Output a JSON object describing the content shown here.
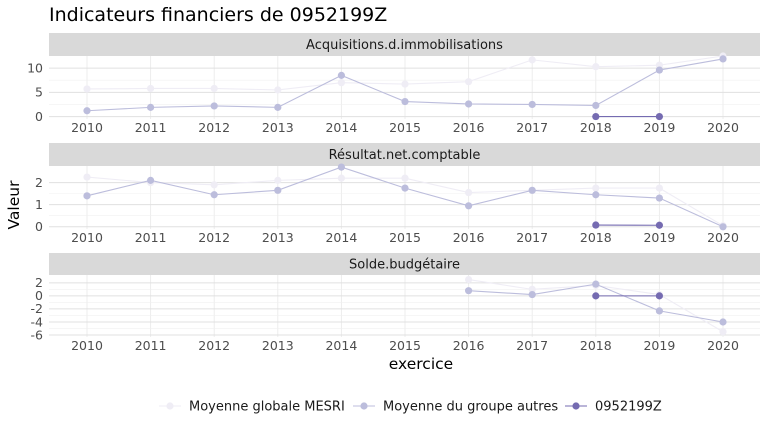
{
  "chart_data": {
    "type": "line",
    "title": "Indicateurs financiers de 0952199Z",
    "xlabel": "exercice",
    "ylabel": "Valeur",
    "x": [
      2010,
      2011,
      2012,
      2013,
      2014,
      2015,
      2016,
      2017,
      2018,
      2019,
      2020
    ],
    "legend": {
      "position": "bottom"
    },
    "series_styles": [
      {
        "name": "Moyenne globale MESRI",
        "color": "#efedf5"
      },
      {
        "name": "Moyenne du groupe autres",
        "color": "#bcbddc"
      },
      {
        "name": "0952199Z",
        "color": "#756bb1"
      }
    ],
    "panels": [
      {
        "strip": "Acquisitions.d.immobilisations",
        "ylim": [
          -0.5,
          12.5
        ],
        "yticks": [
          0,
          5,
          10
        ],
        "series": [
          {
            "name": "Moyenne globale MESRI",
            "values": [
              5.7,
              5.8,
              5.8,
              5.5,
              7.0,
              6.7,
              7.2,
              11.7,
              10.3,
              10.6,
              12.5
            ]
          },
          {
            "name": "Moyenne du groupe autres",
            "values": [
              1.2,
              1.9,
              2.2,
              1.9,
              8.5,
              3.1,
              2.6,
              2.5,
              2.3,
              9.6,
              11.9
            ]
          },
          {
            "name": "0952199Z",
            "values": [
              null,
              null,
              null,
              null,
              null,
              null,
              null,
              null,
              0.0,
              0.0,
              null
            ]
          }
        ]
      },
      {
        "strip": "Résultat.net.comptable",
        "ylim": [
          -0.1,
          2.75
        ],
        "yticks": [
          0,
          1,
          2
        ],
        "series": [
          {
            "name": "Moyenne globale MESRI",
            "values": [
              2.25,
              2.0,
              1.9,
              2.1,
              2.2,
              2.2,
              1.55,
              1.65,
              1.75,
              1.75,
              0.05
            ]
          },
          {
            "name": "Moyenne du groupe autres",
            "values": [
              1.4,
              2.1,
              1.45,
              1.65,
              2.7,
              1.75,
              0.95,
              1.65,
              1.45,
              1.3,
              0.0
            ]
          },
          {
            "name": "0952199Z",
            "values": [
              null,
              null,
              null,
              null,
              null,
              null,
              null,
              null,
              0.08,
              0.07,
              null
            ]
          }
        ]
      },
      {
        "strip": "Solde.budgétaire",
        "ylim": [
          -6.3,
          3.2
        ],
        "yticks": [
          -6,
          -4,
          -2,
          0,
          2
        ],
        "series": [
          {
            "name": "Moyenne globale MESRI",
            "values": [
              null,
              null,
              null,
              null,
              null,
              null,
              2.5,
              1.0,
              1.6,
              0.2,
              -5.5
            ]
          },
          {
            "name": "Moyenne du groupe autres",
            "values": [
              null,
              null,
              null,
              null,
              null,
              null,
              0.8,
              0.2,
              1.8,
              -2.3,
              -4.0
            ]
          },
          {
            "name": "0952199Z",
            "values": [
              null,
              null,
              null,
              null,
              null,
              null,
              null,
              null,
              0.0,
              0.0,
              null
            ]
          }
        ]
      }
    ]
  }
}
